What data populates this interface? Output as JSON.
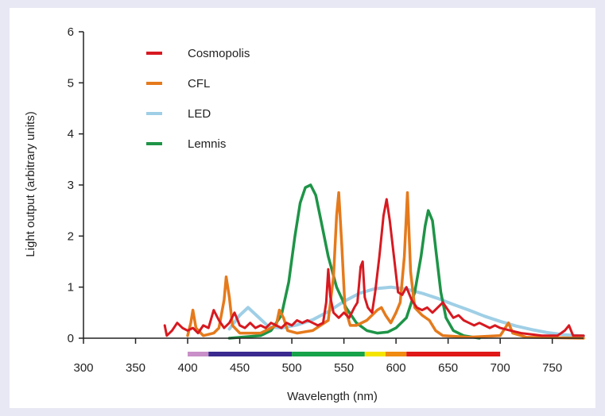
{
  "chart_data": {
    "type": "line",
    "title": "",
    "xlabel": "Wavelength (nm)",
    "ylabel": "Light output (arbitrary units)",
    "xlim": [
      300,
      780
    ],
    "ylim": [
      0,
      6
    ],
    "xticks": [
      300,
      350,
      400,
      450,
      500,
      550,
      600,
      650,
      700,
      750
    ],
    "yticks": [
      0,
      1,
      2,
      3,
      4,
      5,
      6
    ],
    "grid": false,
    "legend_position": "top-left",
    "spectrum_bar": [
      {
        "from": 400,
        "to": 420,
        "color": "#c98fc8"
      },
      {
        "from": 420,
        "to": 500,
        "color": "#3b2a8f"
      },
      {
        "from": 500,
        "to": 570,
        "color": "#16a34a"
      },
      {
        "from": 570,
        "to": 590,
        "color": "#f5e400"
      },
      {
        "from": 590,
        "to": 610,
        "color": "#f08a10"
      },
      {
        "from": 610,
        "to": 700,
        "color": "#e01818"
      }
    ],
    "series": [
      {
        "name": "LED",
        "color": "#9fcfe6",
        "width": 4,
        "points": [
          [
            440,
            0.18
          ],
          [
            450,
            0.45
          ],
          [
            458,
            0.6
          ],
          [
            466,
            0.45
          ],
          [
            478,
            0.22
          ],
          [
            490,
            0.2
          ],
          [
            505,
            0.26
          ],
          [
            520,
            0.36
          ],
          [
            535,
            0.52
          ],
          [
            550,
            0.72
          ],
          [
            565,
            0.88
          ],
          [
            580,
            0.97
          ],
          [
            595,
            1.0
          ],
          [
            610,
            0.96
          ],
          [
            625,
            0.88
          ],
          [
            640,
            0.78
          ],
          [
            655,
            0.66
          ],
          [
            670,
            0.55
          ],
          [
            685,
            0.43
          ],
          [
            700,
            0.33
          ],
          [
            715,
            0.24
          ],
          [
            730,
            0.17
          ],
          [
            745,
            0.11
          ],
          [
            760,
            0.07
          ],
          [
            780,
            0.04
          ]
        ]
      },
      {
        "name": "Lemnis",
        "color": "#1e9447",
        "width": 3.5,
        "points": [
          [
            440,
            0.0
          ],
          [
            470,
            0.05
          ],
          [
            480,
            0.15
          ],
          [
            490,
            0.45
          ],
          [
            497,
            1.1
          ],
          [
            503,
            2.0
          ],
          [
            508,
            2.65
          ],
          [
            513,
            2.95
          ],
          [
            518,
            3.0
          ],
          [
            523,
            2.8
          ],
          [
            528,
            2.3
          ],
          [
            535,
            1.6
          ],
          [
            543,
            1.0
          ],
          [
            552,
            0.6
          ],
          [
            562,
            0.3
          ],
          [
            572,
            0.15
          ],
          [
            582,
            0.1
          ],
          [
            592,
            0.12
          ],
          [
            600,
            0.2
          ],
          [
            610,
            0.4
          ],
          [
            618,
            0.9
          ],
          [
            624,
            1.6
          ],
          [
            628,
            2.2
          ],
          [
            631,
            2.5
          ],
          [
            635,
            2.3
          ],
          [
            639,
            1.6
          ],
          [
            643,
            0.9
          ],
          [
            648,
            0.4
          ],
          [
            655,
            0.15
          ],
          [
            665,
            0.05
          ],
          [
            680,
            0.0
          ]
        ]
      },
      {
        "name": "CFL",
        "color": "#e57a1c",
        "width": 3.5,
        "points": [
          [
            400,
            0.05
          ],
          [
            403,
            0.3
          ],
          [
            405,
            0.55
          ],
          [
            408,
            0.2
          ],
          [
            415,
            0.05
          ],
          [
            425,
            0.1
          ],
          [
            430,
            0.2
          ],
          [
            435,
            0.75
          ],
          [
            437,
            1.2
          ],
          [
            440,
            0.8
          ],
          [
            443,
            0.25
          ],
          [
            450,
            0.1
          ],
          [
            470,
            0.1
          ],
          [
            485,
            0.25
          ],
          [
            488,
            0.55
          ],
          [
            492,
            0.4
          ],
          [
            496,
            0.15
          ],
          [
            505,
            0.1
          ],
          [
            520,
            0.15
          ],
          [
            535,
            0.35
          ],
          [
            540,
            1.2
          ],
          [
            543,
            2.4
          ],
          [
            545,
            2.85
          ],
          [
            548,
            1.8
          ],
          [
            551,
            0.6
          ],
          [
            556,
            0.25
          ],
          [
            562,
            0.25
          ],
          [
            572,
            0.35
          ],
          [
            582,
            0.55
          ],
          [
            586,
            0.6
          ],
          [
            590,
            0.45
          ],
          [
            595,
            0.3
          ],
          [
            600,
            0.5
          ],
          [
            604,
            0.7
          ],
          [
            608,
            1.6
          ],
          [
            611,
            2.85
          ],
          [
            614,
            1.3
          ],
          [
            618,
            0.6
          ],
          [
            625,
            0.45
          ],
          [
            632,
            0.35
          ],
          [
            638,
            0.15
          ],
          [
            645,
            0.05
          ],
          [
            670,
            0.02
          ],
          [
            700,
            0.05
          ],
          [
            708,
            0.3
          ],
          [
            712,
            0.1
          ],
          [
            725,
            0.02
          ],
          [
            780,
            0.0
          ]
        ]
      },
      {
        "name": "Cosmopolis",
        "color": "#d71920",
        "width": 3,
        "points": [
          [
            378,
            0.25
          ],
          [
            380,
            0.05
          ],
          [
            385,
            0.15
          ],
          [
            390,
            0.3
          ],
          [
            395,
            0.2
          ],
          [
            400,
            0.15
          ],
          [
            405,
            0.2
          ],
          [
            410,
            0.1
          ],
          [
            415,
            0.25
          ],
          [
            420,
            0.2
          ],
          [
            425,
            0.55
          ],
          [
            430,
            0.35
          ],
          [
            435,
            0.2
          ],
          [
            440,
            0.3
          ],
          [
            445,
            0.5
          ],
          [
            450,
            0.25
          ],
          [
            455,
            0.2
          ],
          [
            460,
            0.3
          ],
          [
            465,
            0.2
          ],
          [
            470,
            0.25
          ],
          [
            475,
            0.2
          ],
          [
            480,
            0.3
          ],
          [
            485,
            0.25
          ],
          [
            490,
            0.2
          ],
          [
            495,
            0.3
          ],
          [
            500,
            0.25
          ],
          [
            505,
            0.35
          ],
          [
            510,
            0.3
          ],
          [
            515,
            0.35
          ],
          [
            520,
            0.3
          ],
          [
            525,
            0.25
          ],
          [
            530,
            0.3
          ],
          [
            533,
            0.7
          ],
          [
            535,
            1.35
          ],
          [
            537,
            0.8
          ],
          [
            540,
            0.5
          ],
          [
            545,
            0.4
          ],
          [
            550,
            0.5
          ],
          [
            555,
            0.4
          ],
          [
            560,
            0.6
          ],
          [
            563,
            0.7
          ],
          [
            566,
            1.4
          ],
          [
            568,
            1.5
          ],
          [
            570,
            0.8
          ],
          [
            573,
            0.6
          ],
          [
            577,
            0.5
          ],
          [
            580,
            0.9
          ],
          [
            584,
            1.6
          ],
          [
            588,
            2.4
          ],
          [
            591,
            2.72
          ],
          [
            594,
            2.3
          ],
          [
            598,
            1.6
          ],
          [
            602,
            0.9
          ],
          [
            606,
            0.85
          ],
          [
            610,
            1.0
          ],
          [
            615,
            0.75
          ],
          [
            620,
            0.6
          ],
          [
            625,
            0.55
          ],
          [
            630,
            0.6
          ],
          [
            635,
            0.5
          ],
          [
            640,
            0.6
          ],
          [
            645,
            0.7
          ],
          [
            650,
            0.55
          ],
          [
            655,
            0.4
          ],
          [
            660,
            0.45
          ],
          [
            665,
            0.35
          ],
          [
            670,
            0.3
          ],
          [
            675,
            0.25
          ],
          [
            680,
            0.3
          ],
          [
            685,
            0.25
          ],
          [
            690,
            0.2
          ],
          [
            695,
            0.25
          ],
          [
            700,
            0.2
          ],
          [
            710,
            0.15
          ],
          [
            720,
            0.1
          ],
          [
            740,
            0.05
          ],
          [
            755,
            0.05
          ],
          [
            762,
            0.15
          ],
          [
            766,
            0.25
          ],
          [
            770,
            0.05
          ],
          [
            780,
            0.05
          ]
        ]
      }
    ],
    "legend": [
      "Cosmopolis",
      "CFL",
      "LED",
      "Lemnis"
    ]
  }
}
